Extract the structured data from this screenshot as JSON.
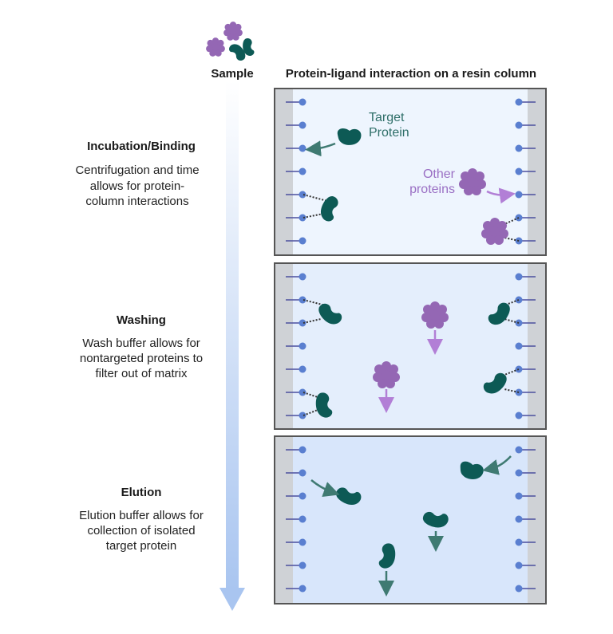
{
  "sample": {
    "label": "Sample"
  },
  "header": {
    "title": "Protein-ligand interaction on a resin column"
  },
  "steps": [
    {
      "title": "Incubation/Binding",
      "desc": [
        "Centrifugation and time",
        "allows for protein-",
        "column interactions"
      ]
    },
    {
      "title": "Washing",
      "desc": [
        "Wash buffer allows for",
        "nontargeted proteins to",
        "filter out of matrix"
      ]
    },
    {
      "title": "Elution",
      "desc": [
        "Elution buffer allows for",
        "collection of isolated",
        "target protein"
      ]
    }
  ],
  "labels": {
    "target": [
      "Target",
      "Protein"
    ],
    "other": [
      "Other",
      "proteins"
    ]
  },
  "colors": {
    "target": "#0d5a55",
    "other": "#9467b4",
    "ligand": "#5a7fd0",
    "rail": "#cfd2d6",
    "panel_bg": [
      "#eef5fe",
      "#e4eefc",
      "#d8e6fb"
    ]
  }
}
